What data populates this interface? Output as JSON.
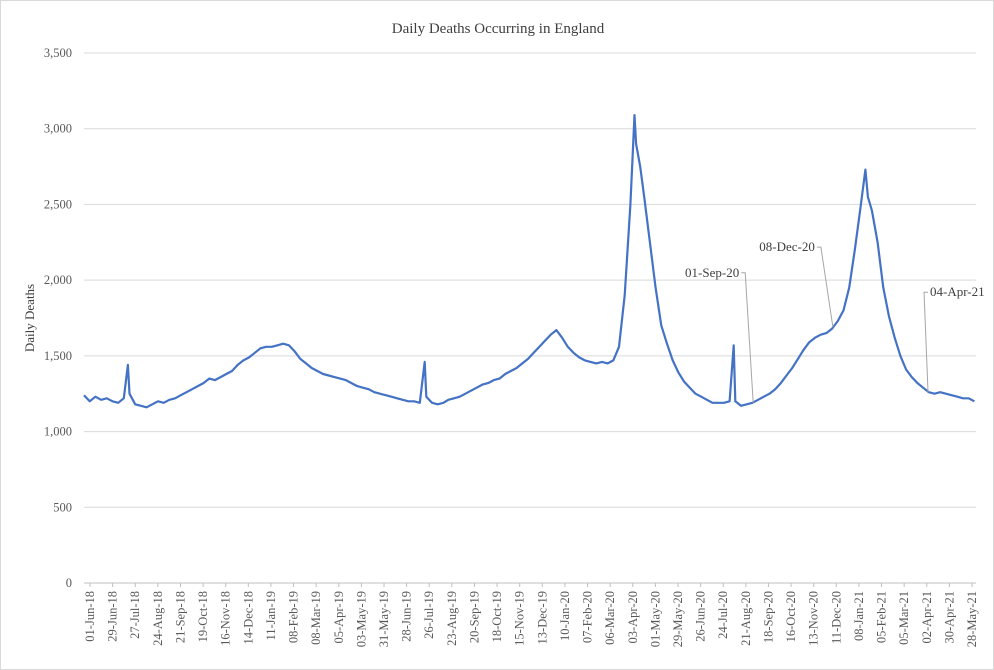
{
  "chart_data": {
    "type": "line",
    "title": "Daily Deaths Occurring in England",
    "xlabel": "",
    "ylabel": "Daily Deaths",
    "ylim": [
      0,
      3500
    ],
    "yticks": [
      0,
      500,
      1000,
      1500,
      2000,
      2500,
      3000,
      3500
    ],
    "ytick_labels": [
      "0",
      "500",
      "1,000",
      "1,500",
      "2,000",
      "2,500",
      "3,000",
      "3,500"
    ],
    "x_start": "2018-06-01",
    "x_end": "2021-06-02",
    "xtick_labels": [
      "01-Jun-18",
      "29-Jun-18",
      "27-Jul-18",
      "24-Aug-18",
      "21-Sep-18",
      "19-Oct-18",
      "16-Nov-18",
      "14-Dec-18",
      "11-Jan-19",
      "08-Feb-19",
      "08-Mar-19",
      "05-Apr-19",
      "03-May-19",
      "31-May-19",
      "28-Jun-19",
      "26-Jul-19",
      "23-Aug-19",
      "20-Sep-19",
      "18-Oct-19",
      "15-Nov-19",
      "13-Dec-19",
      "10-Jan-20",
      "07-Feb-20",
      "06-Mar-20",
      "03-Apr-20",
      "01-May-20",
      "29-May-20",
      "26-Jun-20",
      "24-Jul-20",
      "21-Aug-20",
      "18-Sep-20",
      "16-Oct-20",
      "13-Nov-20",
      "11-Dec-20",
      "08-Jan-21",
      "05-Feb-21",
      "05-Mar-21",
      "02-Apr-21",
      "30-Apr-21",
      "28-May-21"
    ],
    "grid": true,
    "color": "#4472c4",
    "series": [
      {
        "points": [
          [
            "2018-06-01",
            1240
          ],
          [
            "2018-06-08",
            1200
          ],
          [
            "2018-06-15",
            1230
          ],
          [
            "2018-06-22",
            1210
          ],
          [
            "2018-06-29",
            1220
          ],
          [
            "2018-07-06",
            1200
          ],
          [
            "2018-07-13",
            1190
          ],
          [
            "2018-07-20",
            1220
          ],
          [
            "2018-07-25",
            1440
          ],
          [
            "2018-07-27",
            1250
          ],
          [
            "2018-08-03",
            1180
          ],
          [
            "2018-08-10",
            1170
          ],
          [
            "2018-08-17",
            1160
          ],
          [
            "2018-08-24",
            1180
          ],
          [
            "2018-08-31",
            1200
          ],
          [
            "2018-09-07",
            1190
          ],
          [
            "2018-09-14",
            1210
          ],
          [
            "2018-09-21",
            1220
          ],
          [
            "2018-09-28",
            1240
          ],
          [
            "2018-10-05",
            1260
          ],
          [
            "2018-10-12",
            1280
          ],
          [
            "2018-10-19",
            1300
          ],
          [
            "2018-10-26",
            1320
          ],
          [
            "2018-11-02",
            1350
          ],
          [
            "2018-11-09",
            1340
          ],
          [
            "2018-11-16",
            1360
          ],
          [
            "2018-11-23",
            1380
          ],
          [
            "2018-11-30",
            1400
          ],
          [
            "2018-12-07",
            1440
          ],
          [
            "2018-12-14",
            1470
          ],
          [
            "2018-12-21",
            1490
          ],
          [
            "2018-12-28",
            1520
          ],
          [
            "2019-01-04",
            1550
          ],
          [
            "2019-01-11",
            1560
          ],
          [
            "2019-01-18",
            1560
          ],
          [
            "2019-01-25",
            1570
          ],
          [
            "2019-02-01",
            1580
          ],
          [
            "2019-02-08",
            1570
          ],
          [
            "2019-02-15",
            1530
          ],
          [
            "2019-02-22",
            1480
          ],
          [
            "2019-03-01",
            1450
          ],
          [
            "2019-03-08",
            1420
          ],
          [
            "2019-03-15",
            1400
          ],
          [
            "2019-03-22",
            1380
          ],
          [
            "2019-03-29",
            1370
          ],
          [
            "2019-04-05",
            1360
          ],
          [
            "2019-04-12",
            1350
          ],
          [
            "2019-04-19",
            1340
          ],
          [
            "2019-04-26",
            1320
          ],
          [
            "2019-05-03",
            1300
          ],
          [
            "2019-05-10",
            1290
          ],
          [
            "2019-05-17",
            1280
          ],
          [
            "2019-05-24",
            1260
          ],
          [
            "2019-05-31",
            1250
          ],
          [
            "2019-06-07",
            1240
          ],
          [
            "2019-06-14",
            1230
          ],
          [
            "2019-06-21",
            1220
          ],
          [
            "2019-06-28",
            1210
          ],
          [
            "2019-07-05",
            1200
          ],
          [
            "2019-07-12",
            1200
          ],
          [
            "2019-07-19",
            1190
          ],
          [
            "2019-07-25",
            1460
          ],
          [
            "2019-07-27",
            1230
          ],
          [
            "2019-08-03",
            1190
          ],
          [
            "2019-08-10",
            1180
          ],
          [
            "2019-08-17",
            1190
          ],
          [
            "2019-08-23",
            1210
          ],
          [
            "2019-08-30",
            1220
          ],
          [
            "2019-09-06",
            1230
          ],
          [
            "2019-09-13",
            1250
          ],
          [
            "2019-09-20",
            1270
          ],
          [
            "2019-09-27",
            1290
          ],
          [
            "2019-10-04",
            1310
          ],
          [
            "2019-10-11",
            1320
          ],
          [
            "2019-10-18",
            1340
          ],
          [
            "2019-10-25",
            1350
          ],
          [
            "2019-11-01",
            1380
          ],
          [
            "2019-11-08",
            1400
          ],
          [
            "2019-11-15",
            1420
          ],
          [
            "2019-11-22",
            1450
          ],
          [
            "2019-11-29",
            1480
          ],
          [
            "2019-12-06",
            1520
          ],
          [
            "2019-12-13",
            1560
          ],
          [
            "2019-12-20",
            1600
          ],
          [
            "2019-12-27",
            1640
          ],
          [
            "2020-01-03",
            1670
          ],
          [
            "2020-01-10",
            1620
          ],
          [
            "2020-01-17",
            1560
          ],
          [
            "2020-01-24",
            1520
          ],
          [
            "2020-01-31",
            1490
          ],
          [
            "2020-02-07",
            1470
          ],
          [
            "2020-02-14",
            1460
          ],
          [
            "2020-02-21",
            1450
          ],
          [
            "2020-02-28",
            1460
          ],
          [
            "2020-03-06",
            1450
          ],
          [
            "2020-03-13",
            1470
          ],
          [
            "2020-03-20",
            1560
          ],
          [
            "2020-03-27",
            1900
          ],
          [
            "2020-04-03",
            2500
          ],
          [
            "2020-04-08",
            3090
          ],
          [
            "2020-04-10",
            2900
          ],
          [
            "2020-04-15",
            2750
          ],
          [
            "2020-04-20",
            2550
          ],
          [
            "2020-04-27",
            2250
          ],
          [
            "2020-05-04",
            1950
          ],
          [
            "2020-05-11",
            1700
          ],
          [
            "2020-05-18",
            1580
          ],
          [
            "2020-05-25",
            1470
          ],
          [
            "2020-06-01",
            1390
          ],
          [
            "2020-06-08",
            1330
          ],
          [
            "2020-06-15",
            1290
          ],
          [
            "2020-06-22",
            1250
          ],
          [
            "2020-06-29",
            1230
          ],
          [
            "2020-07-06",
            1210
          ],
          [
            "2020-07-13",
            1190
          ],
          [
            "2020-07-20",
            1190
          ],
          [
            "2020-07-27",
            1190
          ],
          [
            "2020-08-03",
            1200
          ],
          [
            "2020-08-08",
            1570
          ],
          [
            "2020-08-10",
            1200
          ],
          [
            "2020-08-17",
            1170
          ],
          [
            "2020-08-24",
            1180
          ],
          [
            "2020-08-31",
            1190
          ],
          [
            "2020-09-07",
            1210
          ],
          [
            "2020-09-14",
            1230
          ],
          [
            "2020-09-21",
            1250
          ],
          [
            "2020-09-28",
            1280
          ],
          [
            "2020-10-05",
            1320
          ],
          [
            "2020-10-12",
            1370
          ],
          [
            "2020-10-19",
            1420
          ],
          [
            "2020-10-26",
            1480
          ],
          [
            "2020-11-02",
            1540
          ],
          [
            "2020-11-09",
            1590
          ],
          [
            "2020-11-16",
            1620
          ],
          [
            "2020-11-23",
            1640
          ],
          [
            "2020-11-30",
            1650
          ],
          [
            "2020-12-07",
            1680
          ],
          [
            "2020-12-14",
            1730
          ],
          [
            "2020-12-21",
            1800
          ],
          [
            "2020-12-28",
            1950
          ],
          [
            "2021-01-04",
            2200
          ],
          [
            "2021-01-11",
            2480
          ],
          [
            "2021-01-17",
            2730
          ],
          [
            "2021-01-20",
            2550
          ],
          [
            "2021-01-25",
            2460
          ],
          [
            "2021-02-01",
            2250
          ],
          [
            "2021-02-08",
            1950
          ],
          [
            "2021-02-15",
            1760
          ],
          [
            "2021-02-22",
            1620
          ],
          [
            "2021-03-01",
            1500
          ],
          [
            "2021-03-08",
            1410
          ],
          [
            "2021-03-15",
            1360
          ],
          [
            "2021-03-22",
            1320
          ],
          [
            "2021-03-29",
            1290
          ],
          [
            "2021-04-05",
            1260
          ],
          [
            "2021-04-12",
            1250
          ],
          [
            "2021-04-19",
            1260
          ],
          [
            "2021-04-26",
            1250
          ],
          [
            "2021-05-03",
            1240
          ],
          [
            "2021-05-10",
            1230
          ],
          [
            "2021-05-17",
            1220
          ],
          [
            "2021-05-24",
            1220
          ],
          [
            "2021-05-31",
            1200
          ]
        ]
      }
    ],
    "annotations": [
      {
        "text": "01-Sep-20",
        "x": "2020-09-01",
        "y": 1190
      },
      {
        "text": "08-Dec-20",
        "x": "2020-12-08",
        "y": 1690
      },
      {
        "text": "04-Apr-21",
        "x": "2021-04-04",
        "y": 1260
      }
    ]
  }
}
